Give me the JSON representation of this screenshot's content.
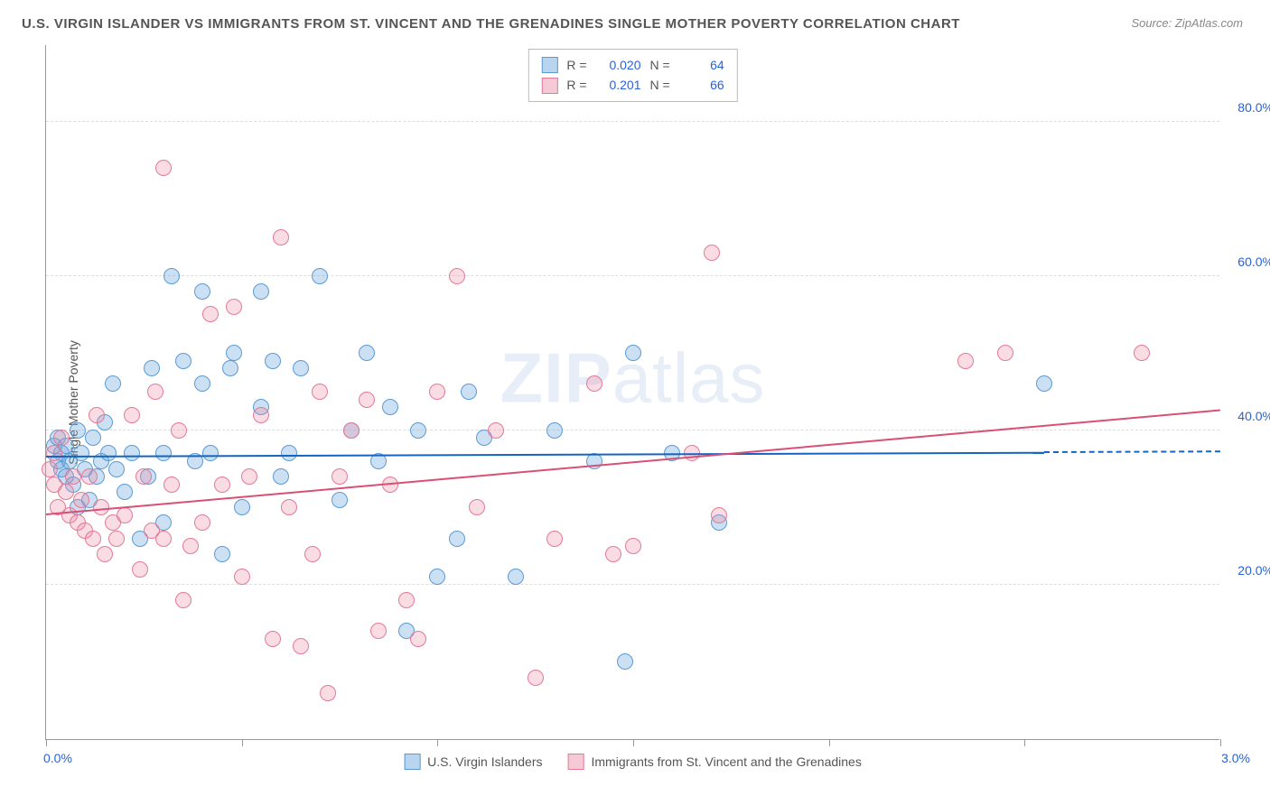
{
  "title": "U.S. VIRGIN ISLANDER VS IMMIGRANTS FROM ST. VINCENT AND THE GRENADINES SINGLE MOTHER POVERTY CORRELATION CHART",
  "source": "Source: ZipAtlas.com",
  "ylabel": "Single Mother Poverty",
  "watermark_bold": "ZIP",
  "watermark_rest": "atlas",
  "chart": {
    "type": "scatter",
    "xlim": [
      0.0,
      3.0
    ],
    "ylim": [
      0.0,
      90.0
    ],
    "y_gridlines": [
      20.0,
      40.0,
      60.0,
      80.0
    ],
    "y_tick_labels": [
      "20.0%",
      "40.0%",
      "60.0%",
      "80.0%"
    ],
    "x_ticks": [
      0.0,
      0.5,
      1.0,
      1.5,
      2.0,
      2.5,
      3.0
    ],
    "x_axis_min_label": "0.0%",
    "x_axis_max_label": "3.0%",
    "background_color": "#ffffff",
    "grid_color": "#dddddd",
    "axis_color": "#999999",
    "marker_radius": 9,
    "marker_border_width": 1.5,
    "series": [
      {
        "name": "U.S. Virgin Islanders",
        "fill": "rgba(110,165,220,0.35)",
        "stroke": "#5a9bd5",
        "swatch_fill": "#b9d4ee",
        "swatch_border": "#5a9bd5",
        "R": "0.020",
        "N": "64",
        "trend": {
          "x1": 0.0,
          "y1": 36.5,
          "x2": 2.55,
          "y2": 37.0,
          "color": "#1565c0",
          "dashed_to_x": 3.0
        },
        "points": [
          [
            0.02,
            38
          ],
          [
            0.03,
            39
          ],
          [
            0.03,
            36
          ],
          [
            0.04,
            37
          ],
          [
            0.04,
            35
          ],
          [
            0.05,
            38
          ],
          [
            0.05,
            34
          ],
          [
            0.06,
            36
          ],
          [
            0.07,
            33
          ],
          [
            0.08,
            40
          ],
          [
            0.08,
            30
          ],
          [
            0.09,
            37
          ],
          [
            0.1,
            35
          ],
          [
            0.11,
            31
          ],
          [
            0.12,
            39
          ],
          [
            0.13,
            34
          ],
          [
            0.14,
            36
          ],
          [
            0.15,
            41
          ],
          [
            0.16,
            37
          ],
          [
            0.17,
            46
          ],
          [
            0.18,
            35
          ],
          [
            0.2,
            32
          ],
          [
            0.22,
            37
          ],
          [
            0.24,
            26
          ],
          [
            0.26,
            34
          ],
          [
            0.27,
            48
          ],
          [
            0.3,
            37
          ],
          [
            0.3,
            28
          ],
          [
            0.32,
            60
          ],
          [
            0.35,
            49
          ],
          [
            0.38,
            36
          ],
          [
            0.4,
            46
          ],
          [
            0.4,
            58
          ],
          [
            0.42,
            37
          ],
          [
            0.45,
            24
          ],
          [
            0.47,
            48
          ],
          [
            0.48,
            50
          ],
          [
            0.5,
            30
          ],
          [
            0.55,
            43
          ],
          [
            0.55,
            58
          ],
          [
            0.58,
            49
          ],
          [
            0.6,
            34
          ],
          [
            0.62,
            37
          ],
          [
            0.65,
            48
          ],
          [
            0.7,
            60
          ],
          [
            0.75,
            31
          ],
          [
            0.78,
            40
          ],
          [
            0.82,
            50
          ],
          [
            0.85,
            36
          ],
          [
            0.88,
            43
          ],
          [
            0.92,
            14
          ],
          [
            0.95,
            40
          ],
          [
            1.0,
            21
          ],
          [
            1.05,
            26
          ],
          [
            1.08,
            45
          ],
          [
            1.12,
            39
          ],
          [
            1.2,
            21
          ],
          [
            1.3,
            40
          ],
          [
            1.4,
            36
          ],
          [
            1.48,
            10
          ],
          [
            1.5,
            50
          ],
          [
            1.6,
            37
          ],
          [
            1.72,
            28
          ],
          [
            2.55,
            46
          ]
        ]
      },
      {
        "name": "Immigrants from St. Vincent and the Grenadines",
        "fill": "rgba(235,140,165,0.3)",
        "stroke": "#e47a96",
        "swatch_fill": "#f5c9d5",
        "swatch_border": "#e47a96",
        "R": "0.201",
        "N": "66",
        "trend": {
          "x1": 0.0,
          "y1": 29.0,
          "x2": 3.0,
          "y2": 42.5,
          "color": "#d94f75"
        },
        "points": [
          [
            0.01,
            35
          ],
          [
            0.02,
            37
          ],
          [
            0.02,
            33
          ],
          [
            0.03,
            30
          ],
          [
            0.04,
            39
          ],
          [
            0.05,
            32
          ],
          [
            0.06,
            29
          ],
          [
            0.07,
            34
          ],
          [
            0.08,
            28
          ],
          [
            0.09,
            31
          ],
          [
            0.1,
            27
          ],
          [
            0.11,
            34
          ],
          [
            0.12,
            26
          ],
          [
            0.13,
            42
          ],
          [
            0.14,
            30
          ],
          [
            0.15,
            24
          ],
          [
            0.17,
            28
          ],
          [
            0.18,
            26
          ],
          [
            0.2,
            29
          ],
          [
            0.22,
            42
          ],
          [
            0.24,
            22
          ],
          [
            0.25,
            34
          ],
          [
            0.27,
            27
          ],
          [
            0.28,
            45
          ],
          [
            0.3,
            26
          ],
          [
            0.3,
            74
          ],
          [
            0.32,
            33
          ],
          [
            0.34,
            40
          ],
          [
            0.35,
            18
          ],
          [
            0.37,
            25
          ],
          [
            0.4,
            28
          ],
          [
            0.42,
            55
          ],
          [
            0.45,
            33
          ],
          [
            0.48,
            56
          ],
          [
            0.5,
            21
          ],
          [
            0.52,
            34
          ],
          [
            0.55,
            42
          ],
          [
            0.58,
            13
          ],
          [
            0.6,
            65
          ],
          [
            0.62,
            30
          ],
          [
            0.65,
            12
          ],
          [
            0.68,
            24
          ],
          [
            0.7,
            45
          ],
          [
            0.72,
            6
          ],
          [
            0.75,
            34
          ],
          [
            0.78,
            40
          ],
          [
            0.82,
            44
          ],
          [
            0.85,
            14
          ],
          [
            0.88,
            33
          ],
          [
            0.92,
            18
          ],
          [
            0.95,
            13
          ],
          [
            1.0,
            45
          ],
          [
            1.05,
            60
          ],
          [
            1.1,
            30
          ],
          [
            1.15,
            40
          ],
          [
            1.25,
            8
          ],
          [
            1.3,
            26
          ],
          [
            1.4,
            46
          ],
          [
            1.45,
            24
          ],
          [
            1.5,
            25
          ],
          [
            1.65,
            37
          ],
          [
            1.7,
            63
          ],
          [
            1.72,
            29
          ],
          [
            2.35,
            49
          ],
          [
            2.45,
            50
          ],
          [
            2.8,
            50
          ]
        ]
      }
    ]
  },
  "legend_top": {
    "r_label": "R =",
    "n_label": "N ="
  }
}
